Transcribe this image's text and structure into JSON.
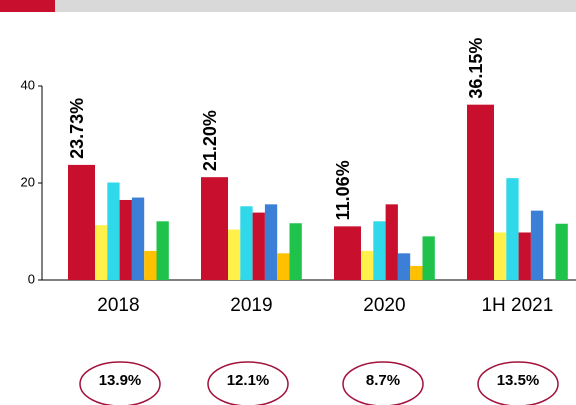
{
  "chart_data": {
    "type": "bar",
    "categories": [
      "2018",
      "2019",
      "2020",
      "1H 2021"
    ],
    "series": [
      {
        "color": "#c8102e",
        "values": [
          23.73,
          21.2,
          11.06,
          36.15
        ],
        "value_labels": [
          "23.73%",
          "21.20%",
          "11.06%",
          "36.15%"
        ]
      },
      {
        "color": "#fff04a",
        "values": [
          11.3,
          10.4,
          6,
          9.8
        ]
      },
      {
        "color": "#2fd9ea",
        "values": [
          20.1,
          15.2,
          12.1,
          21
        ]
      },
      {
        "color": "#c8102e",
        "values": [
          16.5,
          13.9,
          15.6,
          9.8
        ]
      },
      {
        "color": "#3b7fd6",
        "values": [
          17,
          15.6,
          5.5,
          14.3
        ]
      },
      {
        "color": "#ffc000",
        "values": [
          6,
          5.5,
          2.9,
          null
        ]
      },
      {
        "color": "#1fc24a",
        "values": [
          12.1,
          11.7,
          9,
          11.6
        ]
      }
    ],
    "ylim": [
      0,
      40
    ],
    "yticks": [
      0,
      20,
      40
    ],
    "annotations": [
      "13.9%",
      "12.1%",
      "8.7%",
      "13.5%"
    ]
  }
}
